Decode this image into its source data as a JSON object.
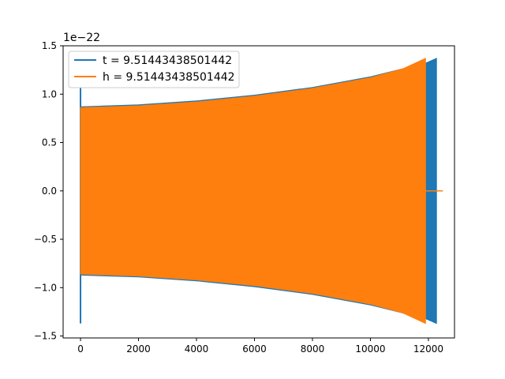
{
  "chart_data": {
    "type": "line",
    "title": "",
    "xlabel": "",
    "ylabel": "",
    "y_offset_label": "1e−22",
    "xlim": [
      -600,
      12900
    ],
    "ylim": [
      -1.52,
      1.5
    ],
    "x_ticks": [
      0,
      2000,
      4000,
      6000,
      8000,
      10000,
      12000
    ],
    "x_tick_labels": [
      "0",
      "2000",
      "4000",
      "6000",
      "8000",
      "10000",
      "12000"
    ],
    "y_ticks": [
      -1.5,
      -1.0,
      -0.5,
      0.0,
      0.5,
      1.0,
      1.5
    ],
    "y_tick_labels": [
      "−1.5",
      "−1.0",
      "−0.5",
      "0.0",
      "0.5",
      "1.0",
      "1.5"
    ],
    "grid": false,
    "legend_position": "upper-left",
    "series": [
      {
        "name": "t = 9.51443438501442",
        "color": "#1f77b4",
        "envelope_x": [
          0,
          2000,
          4000,
          6000,
          8000,
          10000,
          11900,
          12280
        ],
        "envelope_upper": [
          0.87,
          0.89,
          0.93,
          0.99,
          1.07,
          1.18,
          1.32,
          1.37
        ],
        "envelope_lower": [
          -0.87,
          -0.89,
          -0.93,
          -0.99,
          -1.07,
          -1.18,
          -1.32,
          -1.37
        ],
        "spike_x": 0,
        "spike_range": [
          -1.37,
          1.07
        ],
        "end_x": 12280
      },
      {
        "name": "h = 9.51443438501442",
        "color": "#ff7f0e",
        "envelope_x": [
          0,
          2000,
          4000,
          6000,
          8000,
          10000,
          11100,
          11900
        ],
        "envelope_upper": [
          0.86,
          0.88,
          0.92,
          0.98,
          1.06,
          1.17,
          1.26,
          1.37
        ],
        "envelope_lower": [
          -0.86,
          -0.88,
          -0.92,
          -0.98,
          -1.06,
          -1.17,
          -1.26,
          -1.37
        ],
        "end_x": 11900,
        "flat_tail_x": [
          11900,
          12500
        ],
        "flat_tail_y": 0.0
      }
    ]
  }
}
